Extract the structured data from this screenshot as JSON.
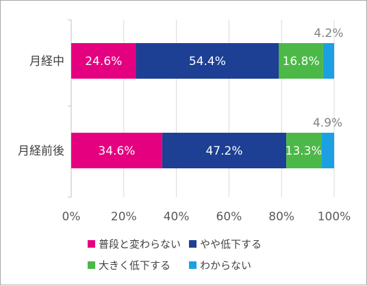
{
  "chart_data": {
    "type": "bar",
    "orientation": "horizontal",
    "stacked": true,
    "categories": [
      "月経中",
      "月経前後"
    ],
    "series": [
      {
        "name": "普段と変わらない",
        "values": [
          24.6,
          34.6
        ],
        "labels": [
          "24.6%",
          "34.6%"
        ],
        "color": "#e4007f",
        "label_color": "#ffffff"
      },
      {
        "name": "やや低下する",
        "values": [
          54.4,
          47.2
        ],
        "labels": [
          "54.4%",
          "47.2%"
        ],
        "color": "#1d3f94",
        "label_color": "#ffffff"
      },
      {
        "name": "大きく低下する",
        "values": [
          16.8,
          13.3
        ],
        "labels": [
          "16.8%",
          "13.3%"
        ],
        "color": "#4cb848",
        "label_color": "#ffffff"
      },
      {
        "name": "わからない",
        "values": [
          4.2,
          4.9
        ],
        "labels": [
          "4.2%",
          "4.9%"
        ],
        "color": "#1ba1e2",
        "label_color": "#808080"
      }
    ],
    "xlim": [
      0,
      100
    ],
    "xticks": [
      "0%",
      "20%",
      "40%",
      "60%",
      "80%",
      "100%"
    ],
    "grid": true,
    "legend_position": "bottom"
  }
}
